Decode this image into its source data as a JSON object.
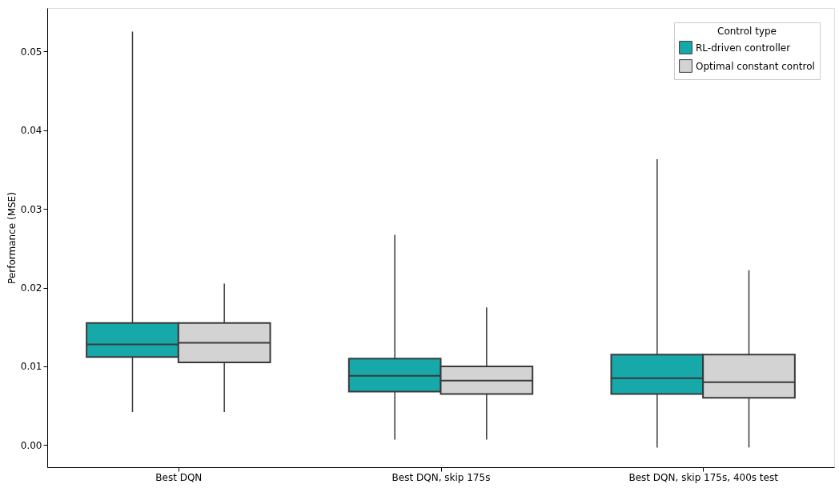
{
  "chart_data": {
    "type": "box",
    "ylabel": "Performance (MSE)",
    "legend_title": "Control type",
    "categories": [
      "Best DQN",
      "Best DQN, skip 175s",
      "Best DQN, skip 175s, 400s test"
    ],
    "ylim": [
      -0.0028,
      0.0555
    ],
    "yticks": [
      {
        "value": 0,
        "label": "0.00"
      },
      {
        "value": 0.01,
        "label": "0.01"
      },
      {
        "value": 0.02,
        "label": "0.02"
      },
      {
        "value": 0.03,
        "label": "0.03"
      },
      {
        "value": 0.04,
        "label": "0.04"
      },
      {
        "value": 0.05,
        "label": "0.05"
      }
    ],
    "grid": false,
    "legend": "top right",
    "series": [
      {
        "name": "RL-driven controller",
        "color": "#17a9aa",
        "boxes": [
          {
            "low": 0.0042,
            "q1": 0.0112,
            "median": 0.0128,
            "q3": 0.0155,
            "high": 0.0525
          },
          {
            "low": 0.0007,
            "q1": 0.0068,
            "median": 0.0088,
            "q3": 0.011,
            "high": 0.0267
          },
          {
            "low": -0.0003,
            "q1": 0.0065,
            "median": 0.0085,
            "q3": 0.0115,
            "high": 0.0363
          }
        ]
      },
      {
        "name": "Optimal constant control",
        "color": "#d3d3d3",
        "boxes": [
          {
            "low": 0.0042,
            "q1": 0.0105,
            "median": 0.013,
            "q3": 0.0155,
            "high": 0.0205
          },
          {
            "low": 0.0007,
            "q1": 0.0065,
            "median": 0.0082,
            "q3": 0.01,
            "high": 0.0175
          },
          {
            "low": -0.0003,
            "q1": 0.006,
            "median": 0.008,
            "q3": 0.0115,
            "high": 0.0222
          }
        ]
      }
    ]
  }
}
